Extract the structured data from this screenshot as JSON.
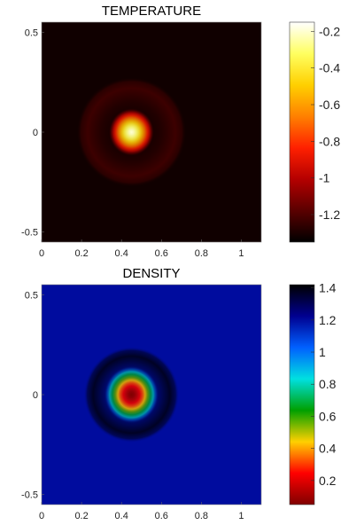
{
  "chart_data": [
    {
      "type": "heatmap",
      "title": "TEMPERATURE",
      "xlabel": "",
      "ylabel": "",
      "xlim": [
        0,
        1.1
      ],
      "ylim": [
        -0.55,
        0.55
      ],
      "xticks": [
        "0",
        "0.2",
        "0.4",
        "0.6",
        "0.8",
        "1"
      ],
      "xtick_values": [
        0,
        0.2,
        0.4,
        0.6,
        0.8,
        1.0
      ],
      "yticks": [
        "0.5",
        "0",
        "-0.5"
      ],
      "ytick_values": [
        0.5,
        0,
        -0.5
      ],
      "colorbar": {
        "min": -1.35,
        "max": -0.15,
        "ticks": [
          "-0.2",
          "-0.4",
          "-0.6",
          "-0.8",
          "-1",
          "-1.2"
        ],
        "tick_values": [
          -0.2,
          -0.4,
          -0.6,
          -0.8,
          -1.0,
          -1.2
        ],
        "colormap": "hot",
        "colors": [
          "#000000",
          "#5a0000",
          "#b40000",
          "#ff2000",
          "#ff8000",
          "#ffd000",
          "#ffff60",
          "#ffffff"
        ]
      },
      "background_value": -1.32,
      "features": [
        {
          "kind": "hot-core",
          "center": [
            0.45,
            0.0
          ],
          "radius": 0.05,
          "peak_value": -0.2
        },
        {
          "kind": "ring",
          "center": [
            0.45,
            0.0
          ],
          "radius": 0.275,
          "value": -1.22
        }
      ]
    },
    {
      "type": "heatmap",
      "title": "DENSITY",
      "xlabel": "",
      "ylabel": "",
      "xlim": [
        0,
        1.1
      ],
      "ylim": [
        -0.55,
        0.55
      ],
      "xticks": [
        "0",
        "0.2",
        "0.4",
        "0.6",
        "0.8",
        "1"
      ],
      "xtick_values": [
        0,
        0.2,
        0.4,
        0.6,
        0.8,
        1.0
      ],
      "yticks": [
        "0.5",
        "0",
        "-0.5"
      ],
      "ytick_values": [
        0.5,
        0,
        -0.5
      ],
      "colorbar": {
        "min": 0.05,
        "max": 1.42,
        "ticks": [
          "1.4",
          "1.2",
          "1",
          "0.8",
          "0.6",
          "0.4",
          "0.2"
        ],
        "tick_values": [
          1.4,
          1.2,
          1.0,
          0.8,
          0.6,
          0.4,
          0.2
        ],
        "colormap": "jet-reversed",
        "colors": [
          "#800000",
          "#ff0000",
          "#ffd000",
          "#00a000",
          "#00e0e0",
          "#0060ff",
          "#000090",
          "#000000"
        ]
      },
      "background_value": 1.2,
      "features": [
        {
          "kind": "low-core",
          "center": [
            0.45,
            0.0
          ],
          "radius": 0.06,
          "min_value": 0.05
        },
        {
          "kind": "ring",
          "center": [
            0.45,
            0.0
          ],
          "radius": 0.24,
          "value": 1.4
        }
      ]
    }
  ]
}
